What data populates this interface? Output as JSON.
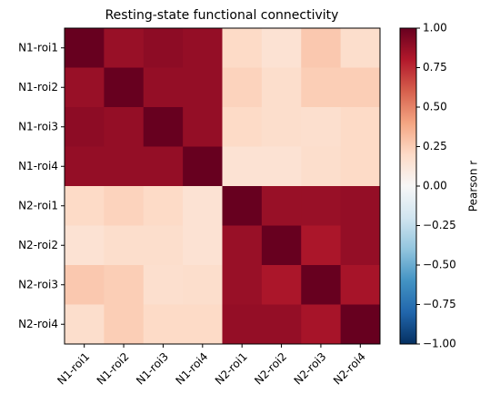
{
  "chart_data": {
    "type": "heatmap",
    "title": "Resting-state functional connectivity",
    "x": [
      "N1-roi1",
      "N1-roi2",
      "N1-roi3",
      "N1-roi4",
      "N2-roi1",
      "N2-roi2",
      "N2-roi3",
      "N2-roi4"
    ],
    "y": [
      "N1-roi1",
      "N1-roi2",
      "N1-roi3",
      "N1-roi4",
      "N2-roi1",
      "N2-roi2",
      "N2-roi3",
      "N2-roi4"
    ],
    "z": [
      [
        1,
        0.87,
        0.9,
        0.88,
        0.2,
        0.15,
        0.27,
        0.18
      ],
      [
        0.87,
        1,
        0.88,
        0.88,
        0.23,
        0.18,
        0.25,
        0.25
      ],
      [
        0.9,
        0.88,
        1,
        0.88,
        0.2,
        0.18,
        0.17,
        0.2
      ],
      [
        0.88,
        0.88,
        0.88,
        1,
        0.15,
        0.15,
        0.18,
        0.2
      ],
      [
        0.2,
        0.23,
        0.2,
        0.15,
        1,
        0.87,
        0.87,
        0.88
      ],
      [
        0.15,
        0.18,
        0.18,
        0.15,
        0.87,
        1,
        0.82,
        0.88
      ],
      [
        0.27,
        0.25,
        0.17,
        0.18,
        0.87,
        0.82,
        1,
        0.83
      ],
      [
        0.18,
        0.25,
        0.2,
        0.2,
        0.88,
        0.88,
        0.83,
        1
      ]
    ],
    "colormap": "RdBu_r",
    "zlim": [
      -1,
      1
    ],
    "colorbar_label": "Pearson r",
    "zticks": [
      {
        "value": 1,
        "label": "1.00"
      },
      {
        "value": 0.75,
        "label": "0.75"
      },
      {
        "value": 0.5,
        "label": "0.50"
      },
      {
        "value": 0.25,
        "label": "0.25"
      },
      {
        "value": 0,
        "label": "0.00"
      },
      {
        "value": -0.25,
        "label": "−0.25"
      },
      {
        "value": -0.5,
        "label": "−0.50"
      },
      {
        "value": -0.75,
        "label": "−0.75"
      },
      {
        "value": -1,
        "label": "−1.00"
      }
    ]
  }
}
